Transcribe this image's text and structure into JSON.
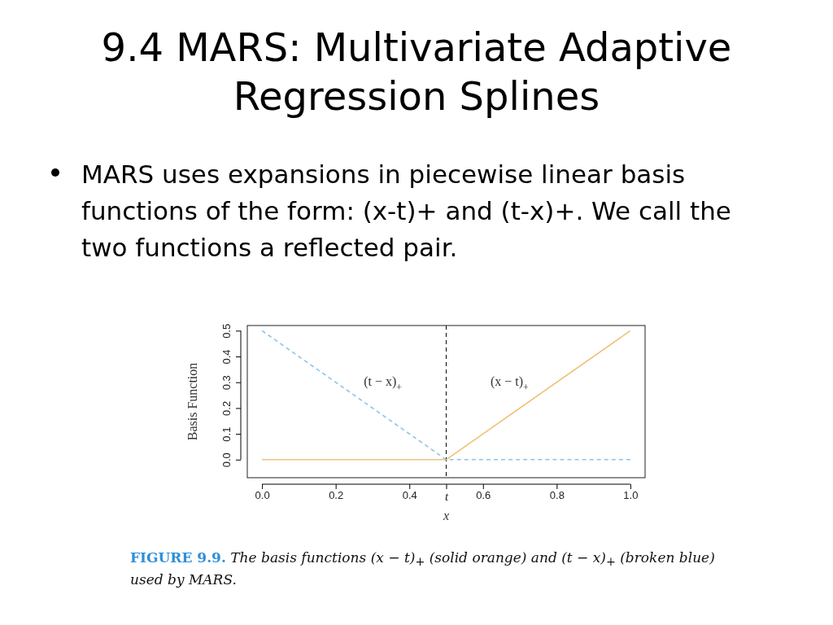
{
  "chart_data": {
    "type": "line",
    "title": "9.4 MARS: Multivariate Adaptive Regression Splines",
    "subtitle": "MARS uses expansions in piecewise linear basis functions of the form: (x-t)+ and (t-x)+. We call the two functions a reflected pair.",
    "xlabel": "x",
    "ylabel": "Basis Function",
    "series": [
      {
        "name": "(x − t)$_{+}$",
        "color": "#f0c078",
        "x": [
          0,
          0.5,
          1
        ],
        "values": [
          0,
          0,
          0.5
        ],
        "line_style": "solid"
      },
      {
        "name": "(t − x)$_{+}$",
        "color": "#8cc4ec",
        "x": [
          0,
          0.5,
          1
        ],
        "values": [
          0.5,
          0,
          0
        ],
        "line_style": "dashed"
      }
    ],
    "xlim": [
      -0.04,
      1.04
    ],
    "xticks": [
      {
        "value": 0,
        "label": "0.0"
      },
      {
        "value": 0.2,
        "label": "0.2"
      },
      {
        "value": 0.4,
        "label": "0.4"
      },
      {
        "value": 0.5,
        "label": "t"
      },
      {
        "value": 0.6,
        "label": "0.6"
      },
      {
        "value": 0.8,
        "label": "0.8"
      },
      {
        "value": 1,
        "label": "1.0"
      }
    ],
    "ylim": [
      -0.07,
      0.52
    ],
    "yticks": [
      {
        "value": 0,
        "label": "0.0"
      },
      0.1,
      0.2,
      0.3,
      0.4,
      0.5
    ],
    "ref_lines": [
      {
        "axis": "x",
        "value": 0.5,
        "color": "#000000",
        "line_style": "dashed"
      }
    ],
    "annotations": [
      "FIGURE 9.9.",
      "The basis functions (x − t)$_{+}$ (solid orange) and (t − x)$_{+}$ (broken blue) used by MARS."
    ],
    "grid": false,
    "marker": "none"
  }
}
